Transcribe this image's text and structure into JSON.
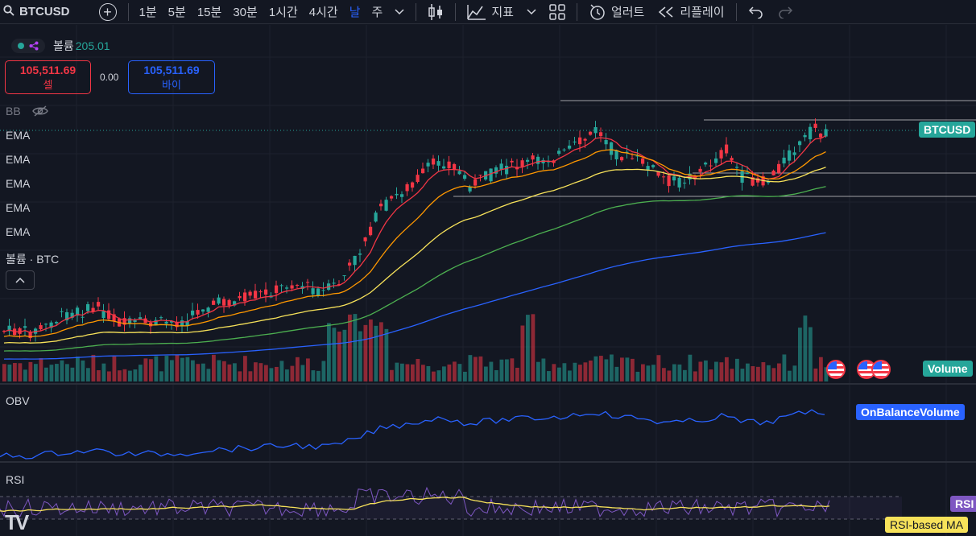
{
  "toolbar": {
    "symbol": "BTCUSD",
    "intervals": [
      "1분",
      "5분",
      "15분",
      "30분",
      "1시간",
      "4시간",
      "날",
      "주"
    ],
    "active_interval": "날",
    "indicators_label": "지표",
    "alert_label": "얼러트",
    "replay_label": "리플레이"
  },
  "legend": {
    "volume_label": "볼륨",
    "volume_value": "205.01",
    "sell_price": "105,511.69",
    "sell_label": "셀",
    "spread": "0.00",
    "buy_price": "105,511.69",
    "buy_label": "바이",
    "bb_label": "BB",
    "ema_labels": [
      "EMA",
      "EMA",
      "EMA",
      "EMA",
      "EMA"
    ],
    "volume_pane_label": "볼륨 · BTC",
    "obv_label": "OBV",
    "rsi_label": "RSI"
  },
  "tags": {
    "price_tag": "BTCUSD",
    "volume_tag": "Volume",
    "obv_tag": "OnBalanceVolume",
    "rsi_tag": "RSI",
    "rsi_ma_tag": "RSI-based MA"
  },
  "colors": {
    "background": "#131722",
    "up": "#26a69a",
    "down": "#f23645",
    "ema_fast": "#f23645",
    "ema_2": "#ff9800",
    "ema_3": "#f7e25a",
    "ema_4": "#4caf50",
    "ema_slow": "#2962ff",
    "obv": "#2962ff",
    "rsi": "#7e57c2",
    "rsi_ma": "#f7e25a"
  },
  "icons": [
    "search-icon",
    "add-symbol-icon",
    "chevron-down-icon",
    "candle-type-icon",
    "indicators-icon",
    "layout-grid-icon",
    "alert-add-icon",
    "replay-icon",
    "undo-icon",
    "redo-icon",
    "eye-off-icon",
    "chevron-up-icon",
    "flag-us-icon"
  ]
}
